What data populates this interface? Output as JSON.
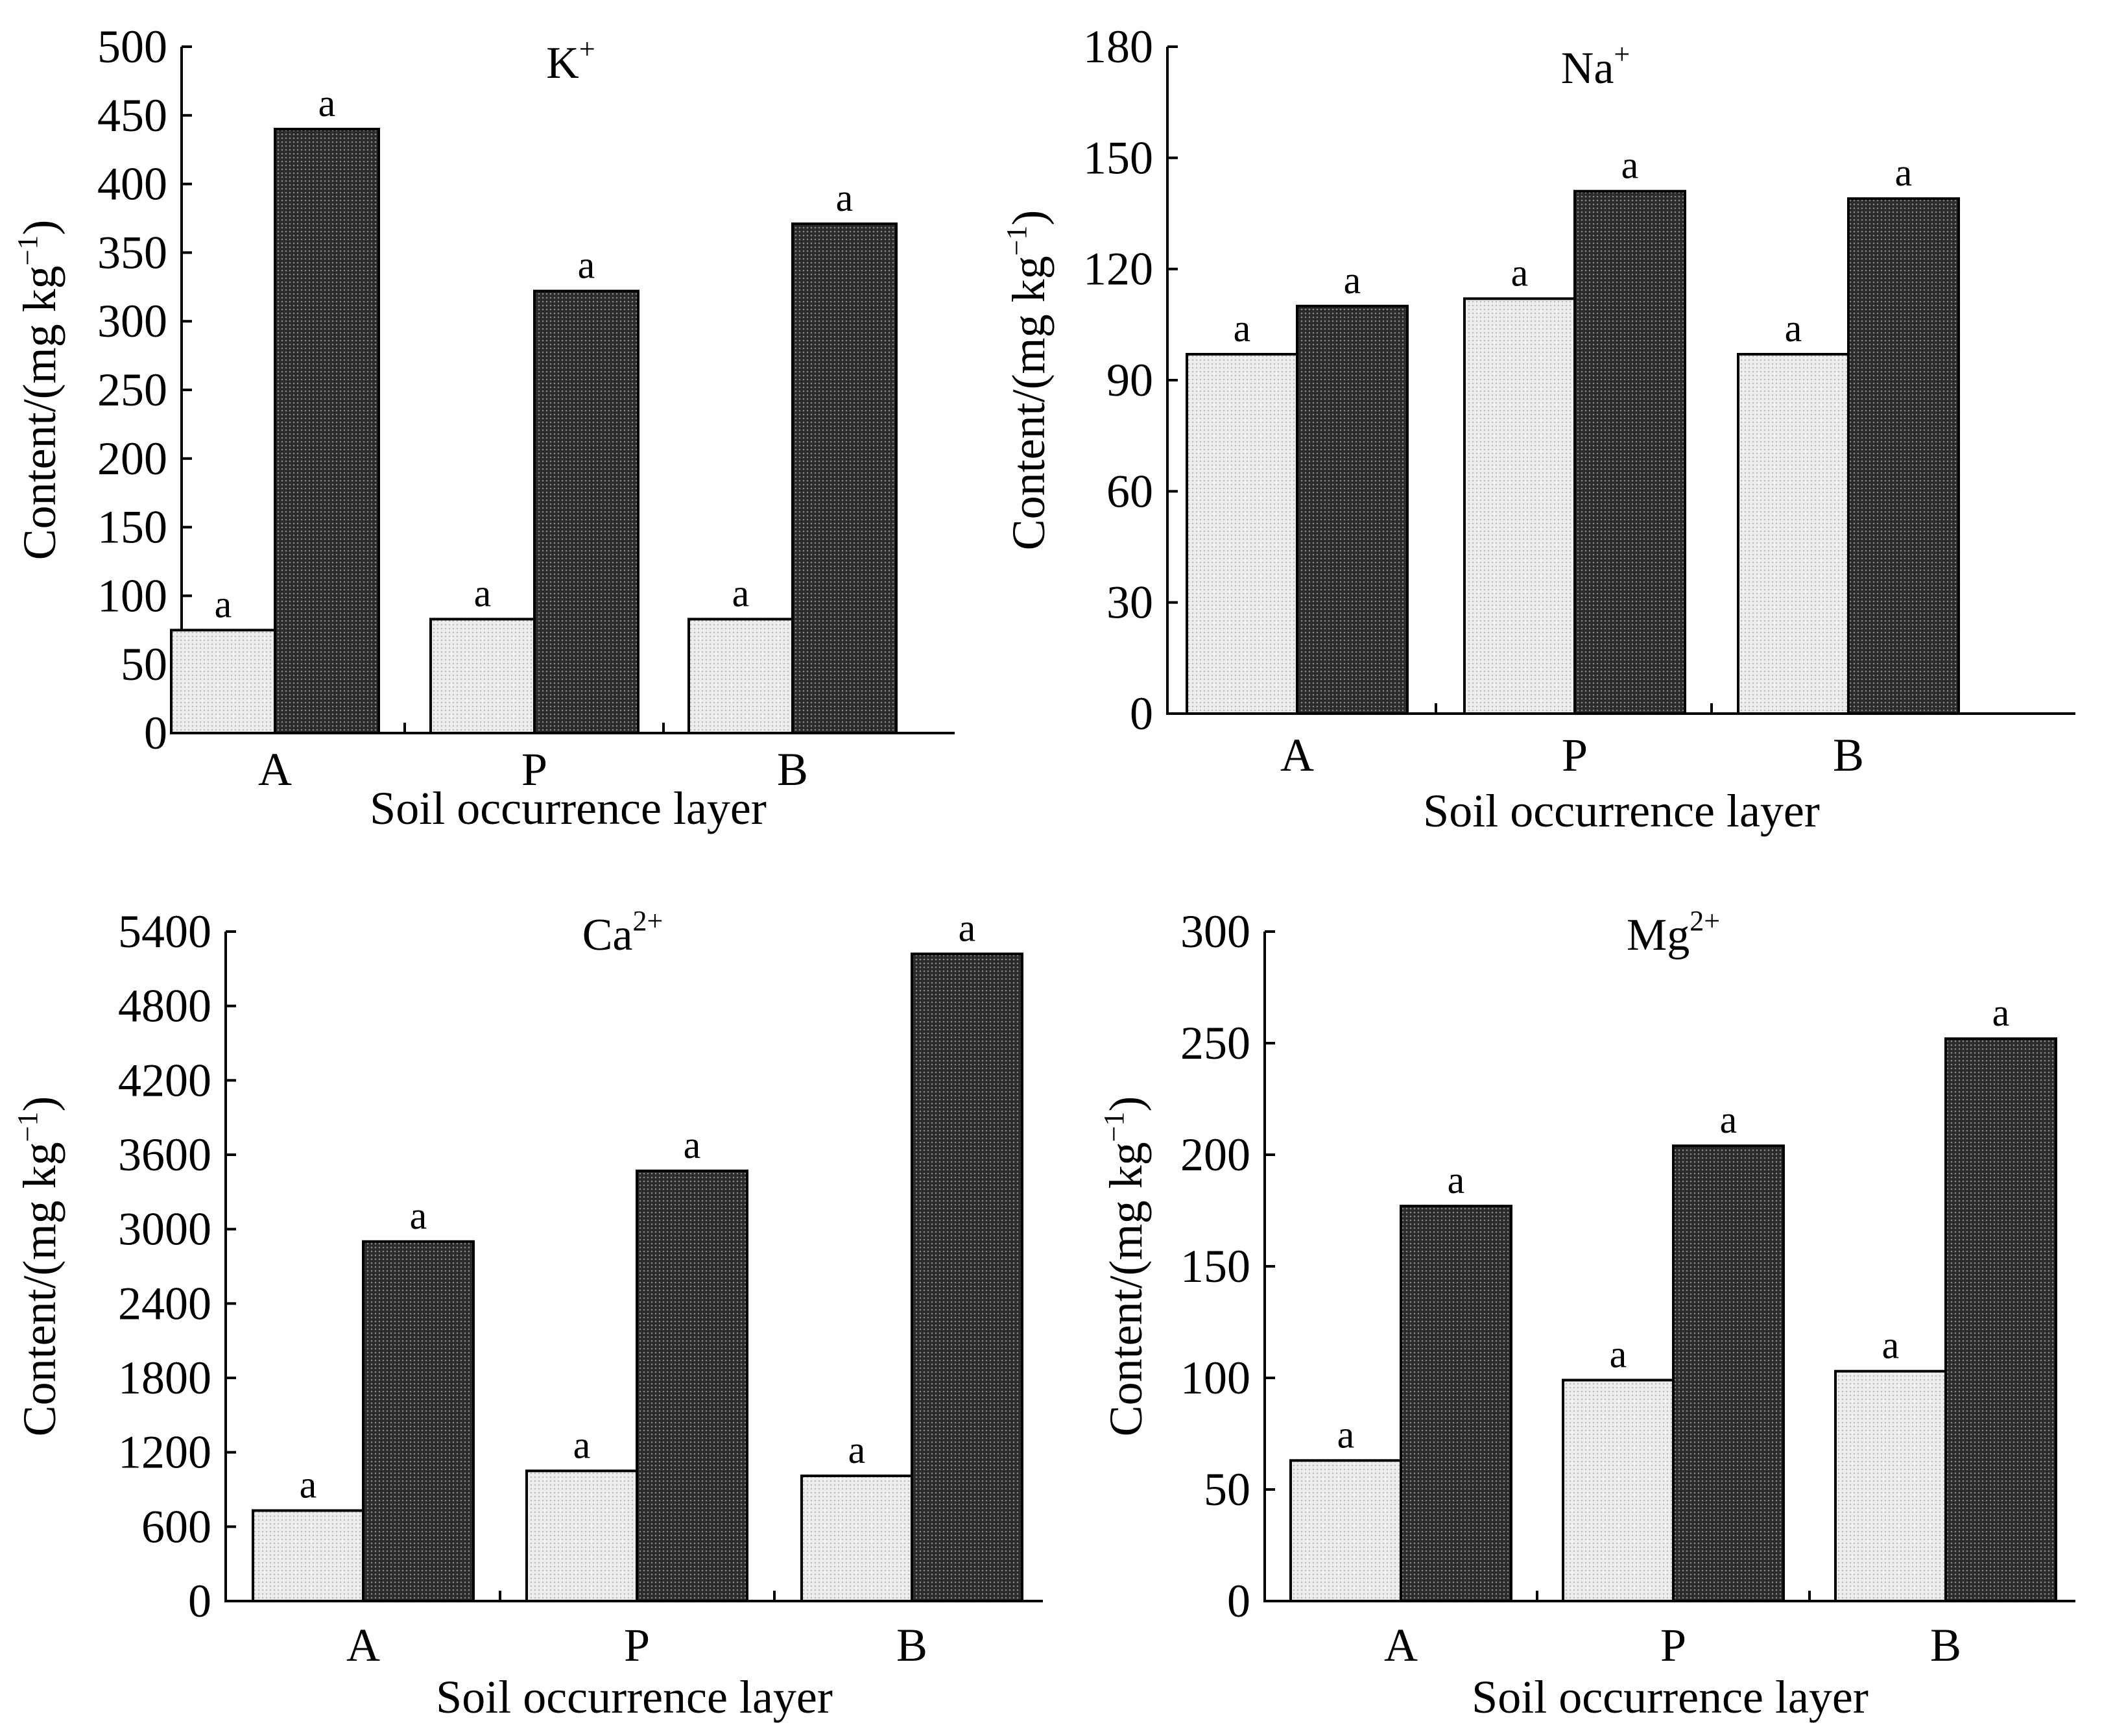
{
  "colors": {
    "light_bar": "#eeeeee",
    "light_bar_dot": "#bdbdbd",
    "dark_bar": "#2b2b2b",
    "dark_bar_dot": "#8a8a8a",
    "axis": "#000000"
  },
  "chart_data": [
    {
      "type": "bar",
      "title_base": "K",
      "title_sup": "+",
      "xlabel": "Soil occurrence layer",
      "ylabel": "Content/(mg kg",
      "ylabel_sup": "−1",
      "ylabel_end": ")",
      "categories": [
        "A",
        "P",
        "B"
      ],
      "ylim": [
        0,
        500
      ],
      "yticks": [
        0,
        50,
        100,
        150,
        200,
        250,
        300,
        350,
        400,
        450,
        500
      ],
      "series": [
        {
          "values": [
            75,
            83,
            83
          ],
          "labels": [
            "a",
            "a",
            "a"
          ],
          "style": "light"
        },
        {
          "values": [
            440,
            322,
            371
          ],
          "labels": [
            "a",
            "a",
            "a"
          ],
          "style": "dark"
        }
      ]
    },
    {
      "type": "bar",
      "title_base": "Na",
      "title_sup": "+",
      "xlabel": "Soil occurrence layer",
      "ylabel": "Content/(mg kg",
      "ylabel_sup": "−1",
      "ylabel_end": ")",
      "categories": [
        "A",
        "P",
        "B"
      ],
      "ylim": [
        0,
        180
      ],
      "yticks": [
        0,
        30,
        60,
        90,
        120,
        150,
        180
      ],
      "series": [
        {
          "values": [
            97,
            112,
            97
          ],
          "labels": [
            "a",
            "a",
            "a"
          ],
          "style": "light"
        },
        {
          "values": [
            110,
            141,
            139
          ],
          "labels": [
            "a",
            "a",
            "a"
          ],
          "style": "dark"
        }
      ]
    },
    {
      "type": "bar",
      "title_base": "Ca",
      "title_sup": "2+",
      "xlabel": "Soil occurrence layer",
      "ylabel": "Content/(mg kg",
      "ylabel_sup": "−1",
      "ylabel_end": ")",
      "categories": [
        "A",
        "P",
        "B"
      ],
      "ylim": [
        0,
        5400
      ],
      "yticks": [
        0,
        600,
        1200,
        1800,
        2400,
        3000,
        3600,
        4200,
        4800,
        5400
      ],
      "series": [
        {
          "values": [
            730,
            1050,
            1010
          ],
          "labels": [
            "a",
            "a",
            "a"
          ],
          "style": "light"
        },
        {
          "values": [
            2900,
            3470,
            5220
          ],
          "labels": [
            "a",
            "a",
            "a"
          ],
          "style": "dark"
        }
      ]
    },
    {
      "type": "bar",
      "title_base": "Mg",
      "title_sup": "2+",
      "xlabel": "Soil occurrence layer",
      "ylabel": "Content/(mg kg",
      "ylabel_sup": "−1",
      "ylabel_end": ")",
      "categories": [
        "A",
        "P",
        "B"
      ],
      "ylim": [
        0,
        300
      ],
      "yticks": [
        0,
        50,
        100,
        150,
        200,
        250,
        300
      ],
      "series": [
        {
          "values": [
            63,
            99,
            103
          ],
          "labels": [
            "a",
            "a",
            "a"
          ],
          "style": "light"
        },
        {
          "values": [
            177,
            204,
            252
          ],
          "labels": [
            "a",
            "a",
            "a"
          ],
          "style": "dark"
        }
      ]
    }
  ]
}
